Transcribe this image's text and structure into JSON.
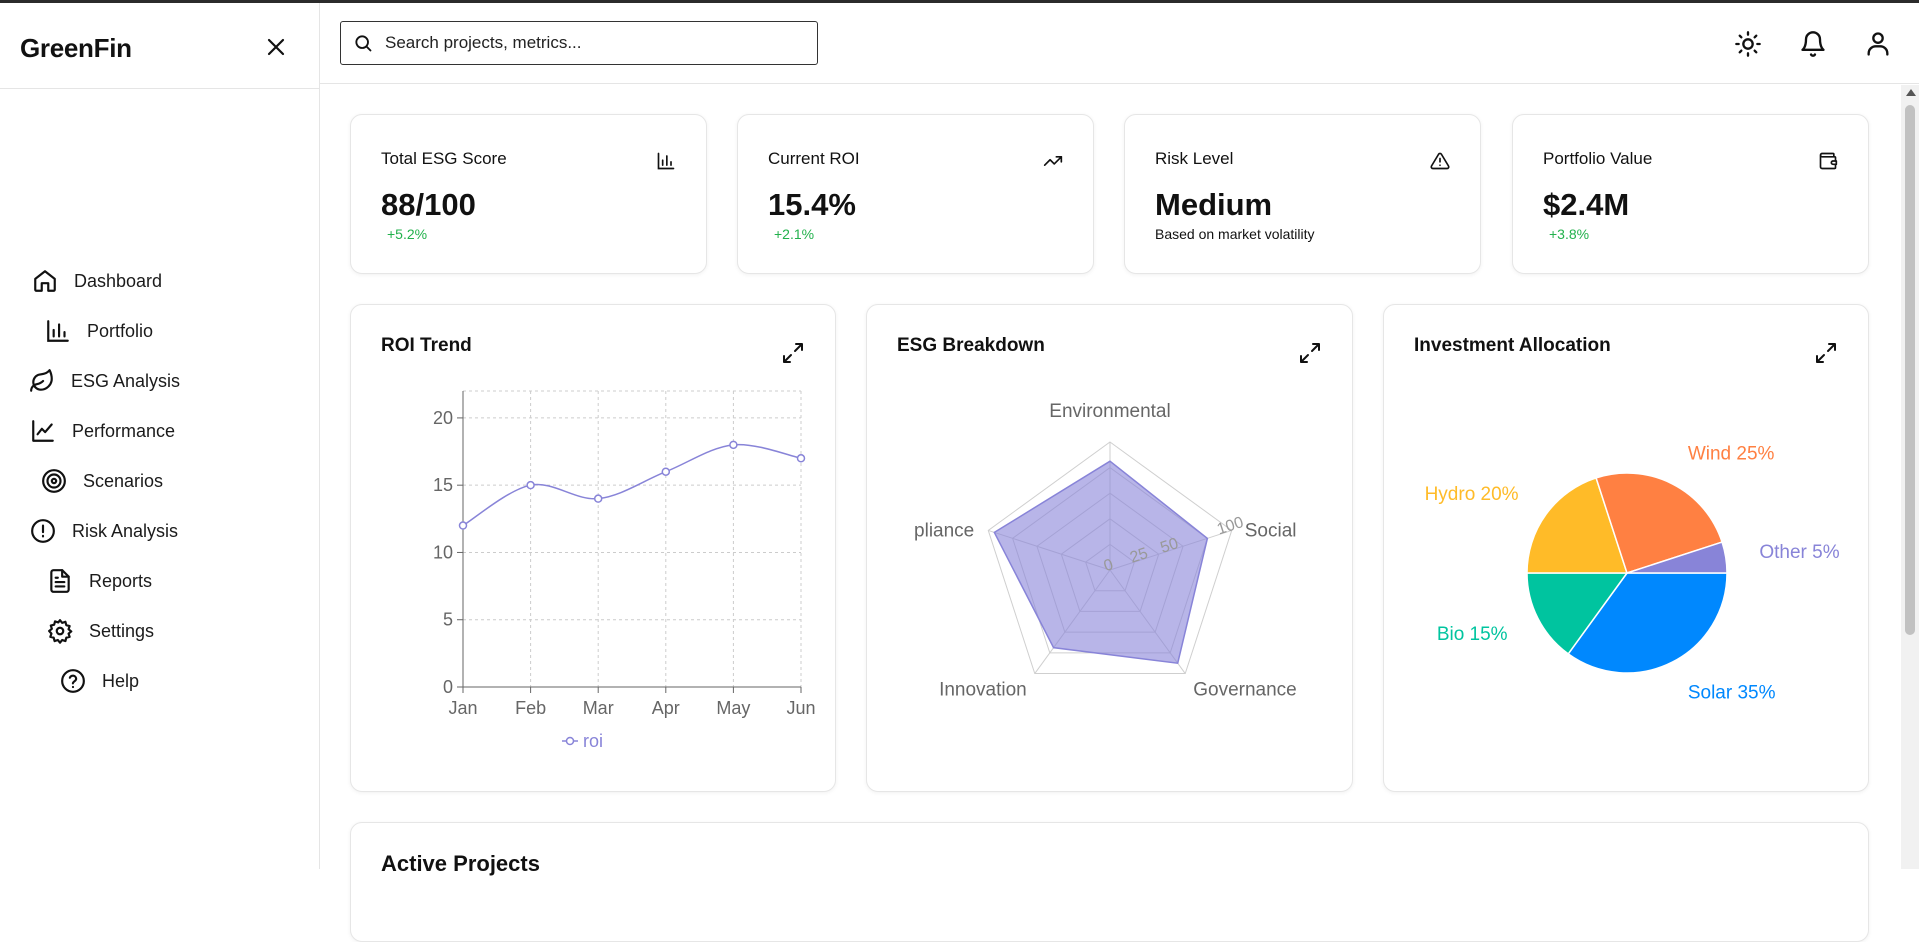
{
  "app": {
    "brand": "GreenFin"
  },
  "sidebar": {
    "items": [
      {
        "label": "Dashboard",
        "icon": "home-icon"
      },
      {
        "label": "Portfolio",
        "icon": "bar-chart-icon"
      },
      {
        "label": "ESG Analysis",
        "icon": "leaf-icon"
      },
      {
        "label": "Performance",
        "icon": "line-chart-icon"
      },
      {
        "label": "Scenarios",
        "icon": "target-icon"
      },
      {
        "label": "Risk Analysis",
        "icon": "alert-circle-icon"
      },
      {
        "label": "Reports",
        "icon": "file-text-icon"
      },
      {
        "label": "Settings",
        "icon": "gear-icon"
      },
      {
        "label": "Help",
        "icon": "help-circle-icon"
      }
    ]
  },
  "header": {
    "search_placeholder": "Search projects, metrics...",
    "icons": [
      "sun-icon",
      "bell-icon",
      "user-icon"
    ]
  },
  "stats": [
    {
      "title": "Total ESG Score",
      "value": "88/100",
      "change": "+5.2%",
      "icon": "bar-chart-icon"
    },
    {
      "title": "Current ROI",
      "value": "15.4%",
      "change": "+2.1%",
      "icon": "trending-up-icon"
    },
    {
      "title": "Risk Level",
      "value": "Medium",
      "note": "Based on market volatility",
      "icon": "warning-triangle-icon"
    },
    {
      "title": "Portfolio Value",
      "value": "$2.4M",
      "change": "+3.8%",
      "icon": "wallet-icon"
    }
  ],
  "colors": {
    "accent": "#8884d8",
    "positive": "#22b14c",
    "pie": [
      "#0088FE",
      "#00C49F",
      "#FFBB28",
      "#FF8042",
      "#8884d8"
    ]
  },
  "chart_data": [
    {
      "type": "line",
      "title": "ROI Trend",
      "categories": [
        "Jan",
        "Feb",
        "Mar",
        "Apr",
        "May",
        "Jun"
      ],
      "series": [
        {
          "name": "roi",
          "values": [
            12,
            15,
            14,
            16,
            18,
            17
          ]
        }
      ],
      "ylim": [
        0,
        22
      ],
      "yticks": [
        0,
        5,
        10,
        15,
        20
      ],
      "grid": true,
      "legend": "bottom"
    },
    {
      "type": "radar",
      "title": "ESG Breakdown",
      "axes": [
        "Environmental",
        "Social",
        "Governance",
        "Innovation",
        "Compliance"
      ],
      "axis_labels_shown": [
        "Environmental",
        "Social",
        "Governance",
        "Innovation",
        "pliance"
      ],
      "values": [
        85,
        80,
        90,
        75,
        95
      ],
      "rlim": [
        0,
        100
      ],
      "rticks": [
        "0",
        "25",
        "50",
        "100"
      ]
    },
    {
      "type": "pie",
      "title": "Investment Allocation",
      "slices": [
        {
          "name": "Solar",
          "value": 35,
          "label": "Solar 35%"
        },
        {
          "name": "Bio",
          "value": 15,
          "label": "Bio 15%"
        },
        {
          "name": "Hydro",
          "value": 20,
          "label": "Hydro 20%"
        },
        {
          "name": "Wind",
          "value": 25,
          "label": "Wind 25%"
        },
        {
          "name": "Other",
          "value": 5,
          "label": "Other 5%"
        }
      ]
    }
  ],
  "section": {
    "active_projects_title": "Active Projects"
  }
}
